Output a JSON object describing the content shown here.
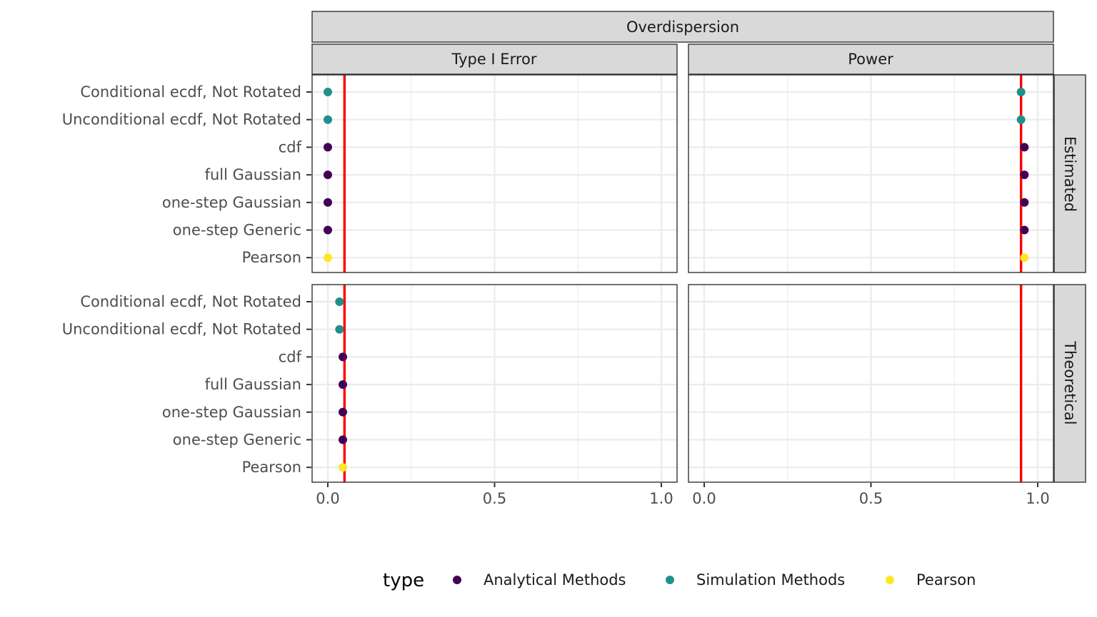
{
  "chart_data": {
    "type": "scatter",
    "facet_title": "Overdispersion",
    "columns": [
      "Type I Error",
      "Power"
    ],
    "rows": [
      "Estimated",
      "Theoretical"
    ],
    "categories": [
      "Conditional ecdf, Not Rotated",
      "Unconditional ecdf, Not Rotated",
      "cdf",
      "full Gaussian",
      "one-step Gaussian",
      "one-step Generic",
      "Pearson"
    ],
    "xlim": [
      0,
      1
    ],
    "x_ticks": [
      "0.0",
      "0.5",
      "1.0"
    ],
    "reference_lines": {
      "Type I Error": 0.05,
      "Power": 0.95
    },
    "reference_color": "#ff0000",
    "legend": {
      "title": "type",
      "position": "bottom",
      "entries": [
        {
          "name": "Analytical Methods",
          "color": "#440154"
        },
        {
          "name": "Simulation Methods",
          "color": "#21908c"
        },
        {
          "name": "Pearson",
          "color": "#fde725"
        }
      ]
    },
    "points": [
      {
        "row": "Estimated",
        "col": "Type I Error",
        "category": "Conditional ecdf, Not Rotated",
        "x": 0.0,
        "type": "Simulation Methods"
      },
      {
        "row": "Estimated",
        "col": "Type I Error",
        "category": "Unconditional ecdf, Not Rotated",
        "x": 0.0,
        "type": "Simulation Methods"
      },
      {
        "row": "Estimated",
        "col": "Type I Error",
        "category": "cdf",
        "x": 0.0,
        "type": "Analytical Methods"
      },
      {
        "row": "Estimated",
        "col": "Type I Error",
        "category": "full Gaussian",
        "x": 0.0,
        "type": "Analytical Methods"
      },
      {
        "row": "Estimated",
        "col": "Type I Error",
        "category": "one-step Gaussian",
        "x": 0.0,
        "type": "Analytical Methods"
      },
      {
        "row": "Estimated",
        "col": "Type I Error",
        "category": "one-step Generic",
        "x": 0.0,
        "type": "Analytical Methods"
      },
      {
        "row": "Estimated",
        "col": "Type I Error",
        "category": "Pearson",
        "x": 0.0,
        "type": "Pearson"
      },
      {
        "row": "Estimated",
        "col": "Power",
        "category": "Conditional ecdf, Not Rotated",
        "x": 0.95,
        "type": "Simulation Methods"
      },
      {
        "row": "Estimated",
        "col": "Power",
        "category": "Unconditional ecdf, Not Rotated",
        "x": 0.95,
        "type": "Simulation Methods"
      },
      {
        "row": "Estimated",
        "col": "Power",
        "category": "cdf",
        "x": 0.96,
        "type": "Analytical Methods"
      },
      {
        "row": "Estimated",
        "col": "Power",
        "category": "full Gaussian",
        "x": 0.96,
        "type": "Analytical Methods"
      },
      {
        "row": "Estimated",
        "col": "Power",
        "category": "one-step Gaussian",
        "x": 0.96,
        "type": "Analytical Methods"
      },
      {
        "row": "Estimated",
        "col": "Power",
        "category": "one-step Generic",
        "x": 0.96,
        "type": "Analytical Methods"
      },
      {
        "row": "Estimated",
        "col": "Power",
        "category": "Pearson",
        "x": 0.96,
        "type": "Pearson"
      },
      {
        "row": "Theoretical",
        "col": "Type I Error",
        "category": "Conditional ecdf, Not Rotated",
        "x": 0.035,
        "type": "Simulation Methods"
      },
      {
        "row": "Theoretical",
        "col": "Type I Error",
        "category": "Unconditional ecdf, Not Rotated",
        "x": 0.035,
        "type": "Simulation Methods"
      },
      {
        "row": "Theoretical",
        "col": "Type I Error",
        "category": "cdf",
        "x": 0.045,
        "type": "Analytical Methods"
      },
      {
        "row": "Theoretical",
        "col": "Type I Error",
        "category": "full Gaussian",
        "x": 0.045,
        "type": "Analytical Methods"
      },
      {
        "row": "Theoretical",
        "col": "Type I Error",
        "category": "one-step Gaussian",
        "x": 0.045,
        "type": "Analytical Methods"
      },
      {
        "row": "Theoretical",
        "col": "Type I Error",
        "category": "one-step Generic",
        "x": 0.045,
        "type": "Analytical Methods"
      },
      {
        "row": "Theoretical",
        "col": "Type I Error",
        "category": "Pearson",
        "x": 0.045,
        "type": "Pearson"
      }
    ]
  }
}
